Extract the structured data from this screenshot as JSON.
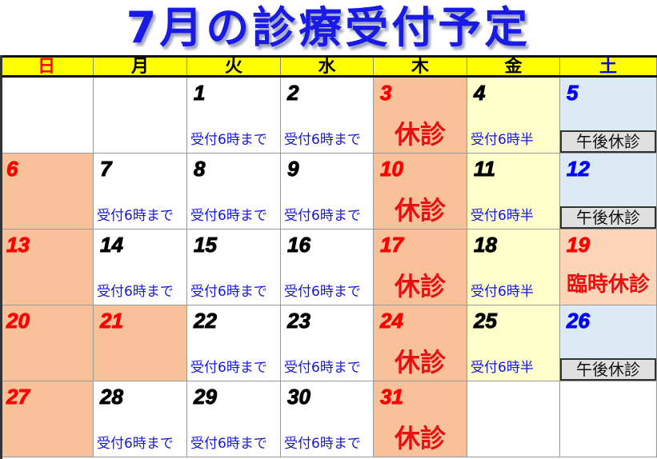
{
  "title": "7月の診療受付予定",
  "weekdays": [
    {
      "label": "日",
      "color": "#ff0000"
    },
    {
      "label": "月",
      "color": "#000000"
    },
    {
      "label": "火",
      "color": "#000000"
    },
    {
      "label": "水",
      "color": "#000000"
    },
    {
      "label": "木",
      "color": "#000000"
    },
    {
      "label": "金",
      "color": "#000000"
    },
    {
      "label": "土",
      "color": "#0000ff"
    }
  ],
  "colors": {
    "header_bg": "#ffff00",
    "closed_bg": "#f8c19a",
    "friday_bg": "#ffffcc",
    "saturday_bg": "#dbeaf3",
    "temp_closed_bg": "#fcd5b8",
    "blank_bg": "#ffffff"
  },
  "weeks": [
    [
      {
        "day": "",
        "bg": "#ffffff"
      },
      {
        "day": "",
        "bg": "#ffffff"
      },
      {
        "day": "1",
        "bg": "#ffffff",
        "day_color": "#000000",
        "note": "受付6時まで",
        "note_type": "blue"
      },
      {
        "day": "2",
        "bg": "#ffffff",
        "day_color": "#000000",
        "note": "受付6時まで",
        "note_type": "blue"
      },
      {
        "day": "3",
        "bg": "#f8c19a",
        "day_color": "#ff0000",
        "note": "休診",
        "note_type": "closed"
      },
      {
        "day": "4",
        "bg": "#ffffcc",
        "day_color": "#000000",
        "note": "受付6時半",
        "note_type": "blue"
      },
      {
        "day": "5",
        "bg": "#dbeaf3",
        "day_color": "#0000ff",
        "note": "午後休診",
        "note_type": "pm"
      }
    ],
    [
      {
        "day": "6",
        "bg": "#f8c19a",
        "day_color": "#ff0000"
      },
      {
        "day": "7",
        "bg": "#ffffff",
        "day_color": "#000000",
        "note": "受付6時まで",
        "note_type": "blue"
      },
      {
        "day": "8",
        "bg": "#ffffff",
        "day_color": "#000000",
        "note": "受付6時まで",
        "note_type": "blue"
      },
      {
        "day": "9",
        "bg": "#ffffff",
        "day_color": "#000000",
        "note": "受付6時まで",
        "note_type": "blue"
      },
      {
        "day": "10",
        "bg": "#f8c19a",
        "day_color": "#ff0000",
        "note": "休診",
        "note_type": "closed"
      },
      {
        "day": "11",
        "bg": "#ffffcc",
        "day_color": "#000000",
        "note": "受付6時半",
        "note_type": "blue"
      },
      {
        "day": "12",
        "bg": "#dbeaf3",
        "day_color": "#0000ff",
        "note": "午後休診",
        "note_type": "pm"
      }
    ],
    [
      {
        "day": "13",
        "bg": "#f8c19a",
        "day_color": "#ff0000"
      },
      {
        "day": "14",
        "bg": "#ffffff",
        "day_color": "#000000",
        "note": "受付6時まで",
        "note_type": "blue"
      },
      {
        "day": "15",
        "bg": "#ffffff",
        "day_color": "#000000",
        "note": "受付6時まで",
        "note_type": "blue"
      },
      {
        "day": "16",
        "bg": "#ffffff",
        "day_color": "#000000",
        "note": "受付6時まで",
        "note_type": "blue"
      },
      {
        "day": "17",
        "bg": "#f8c19a",
        "day_color": "#ff0000",
        "note": "休診",
        "note_type": "closed"
      },
      {
        "day": "18",
        "bg": "#ffffcc",
        "day_color": "#000000",
        "note": "受付6時半",
        "note_type": "blue"
      },
      {
        "day": "19",
        "bg": "#fcd5b8",
        "day_color": "#ff0000",
        "note": "臨時休診",
        "note_type": "temp"
      }
    ],
    [
      {
        "day": "20",
        "bg": "#f8c19a",
        "day_color": "#ff0000"
      },
      {
        "day": "21",
        "bg": "#f8c19a",
        "day_color": "#ff0000"
      },
      {
        "day": "22",
        "bg": "#ffffff",
        "day_color": "#000000",
        "note": "受付6時まで",
        "note_type": "blue"
      },
      {
        "day": "23",
        "bg": "#ffffff",
        "day_color": "#000000",
        "note": "受付6時まで",
        "note_type": "blue"
      },
      {
        "day": "24",
        "bg": "#f8c19a",
        "day_color": "#ff0000",
        "note": "休診",
        "note_type": "closed"
      },
      {
        "day": "25",
        "bg": "#ffffcc",
        "day_color": "#000000",
        "note": "受付6時半",
        "note_type": "blue"
      },
      {
        "day": "26",
        "bg": "#dbeaf3",
        "day_color": "#0000ff",
        "note": "午後休診",
        "note_type": "pm"
      }
    ],
    [
      {
        "day": "27",
        "bg": "#f8c19a",
        "day_color": "#ff0000"
      },
      {
        "day": "28",
        "bg": "#ffffff",
        "day_color": "#000000",
        "note": "受付6時まで",
        "note_type": "blue"
      },
      {
        "day": "29",
        "bg": "#ffffff",
        "day_color": "#000000",
        "note": "受付6時まで",
        "note_type": "blue"
      },
      {
        "day": "30",
        "bg": "#ffffff",
        "day_color": "#000000",
        "note": "受付6時まで",
        "note_type": "blue"
      },
      {
        "day": "31",
        "bg": "#f8c19a",
        "day_color": "#ff0000",
        "note": "休診",
        "note_type": "closed"
      },
      {
        "day": "",
        "bg": "#ffffff"
      },
      {
        "day": "",
        "bg": "#ffffff"
      }
    ]
  ]
}
